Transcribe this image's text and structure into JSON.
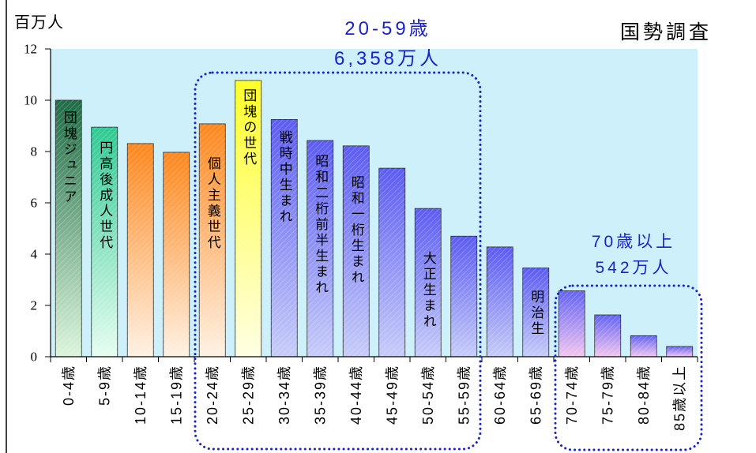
{
  "chart_data": {
    "type": "bar",
    "ylabel": "百万人",
    "source_note": "国勢調査",
    "ylim": [
      0,
      12
    ],
    "yticks": [
      0,
      2,
      4,
      6,
      8,
      10,
      12
    ],
    "grid": false,
    "legend": "none",
    "categories": [
      "0-4歳",
      "5-9歳",
      "10-14歳",
      "15-19歳",
      "20-24歳",
      "25-29歳",
      "30-34歳",
      "35-39歳",
      "40-44歳",
      "45-49歳",
      "50-54歳",
      "55-59歳",
      "60-64歳",
      "65-69歳",
      "70-74歳",
      "75-79歳",
      "80-84歳",
      "85歳以上"
    ],
    "values": [
      10.0,
      8.95,
      8.31,
      7.97,
      9.08,
      10.77,
      9.25,
      8.43,
      8.22,
      7.35,
      5.78,
      4.7,
      4.28,
      3.46,
      2.57,
      1.63,
      0.82,
      0.4
    ],
    "bar_labels": [
      "団塊ジュニア",
      "円高後成人世代",
      null,
      null,
      "個人主義世代",
      "団塊の世代",
      "戦時中生まれ",
      "昭和二桁前半生まれ",
      "昭和一桁生まれ",
      null,
      "大正生まれ",
      null,
      null,
      "明治生",
      null,
      null,
      null,
      null
    ],
    "annotations": [
      {
        "line1": "20-59歳",
        "line2": "6,358万人"
      },
      {
        "line1": "70歳以上",
        "line2": "542万人"
      }
    ]
  },
  "colors": {
    "plot_background": "#cdf0fb",
    "annotation": "#1a22cc",
    "bars": [
      [
        "#1f6c45",
        "#dcf5dc"
      ],
      [
        "#2ec992",
        "#e6fdf1"
      ],
      [
        "#ff861b",
        "#fff1e3"
      ],
      [
        "#ff861b",
        "#fff1e3"
      ],
      [
        "#ff861b",
        "#fff1e3"
      ],
      [
        "#ffff22",
        "#ffffe3"
      ],
      [
        "#5c5cf2",
        "#c6ccf8"
      ],
      [
        "#5c5cf2",
        "#c6ccf8"
      ],
      [
        "#5c5cf2",
        "#c6ccf8"
      ],
      [
        "#5c5cf2",
        "#c6ccf8"
      ],
      [
        "#5c5cf2",
        "#c6ccf8"
      ],
      [
        "#5c5cf2",
        "#c6ccf8"
      ],
      [
        "#5c5cf2",
        "#c6ccf8"
      ],
      [
        "#5c5cf2",
        "#c6ccf8"
      ],
      [
        "#6464f4",
        "#f2c6ee"
      ],
      [
        "#6464f4",
        "#f2c6ee"
      ],
      [
        "#6464f4",
        "#f2c6ee"
      ],
      [
        "#6464f4",
        "#f2c6ee"
      ]
    ]
  }
}
